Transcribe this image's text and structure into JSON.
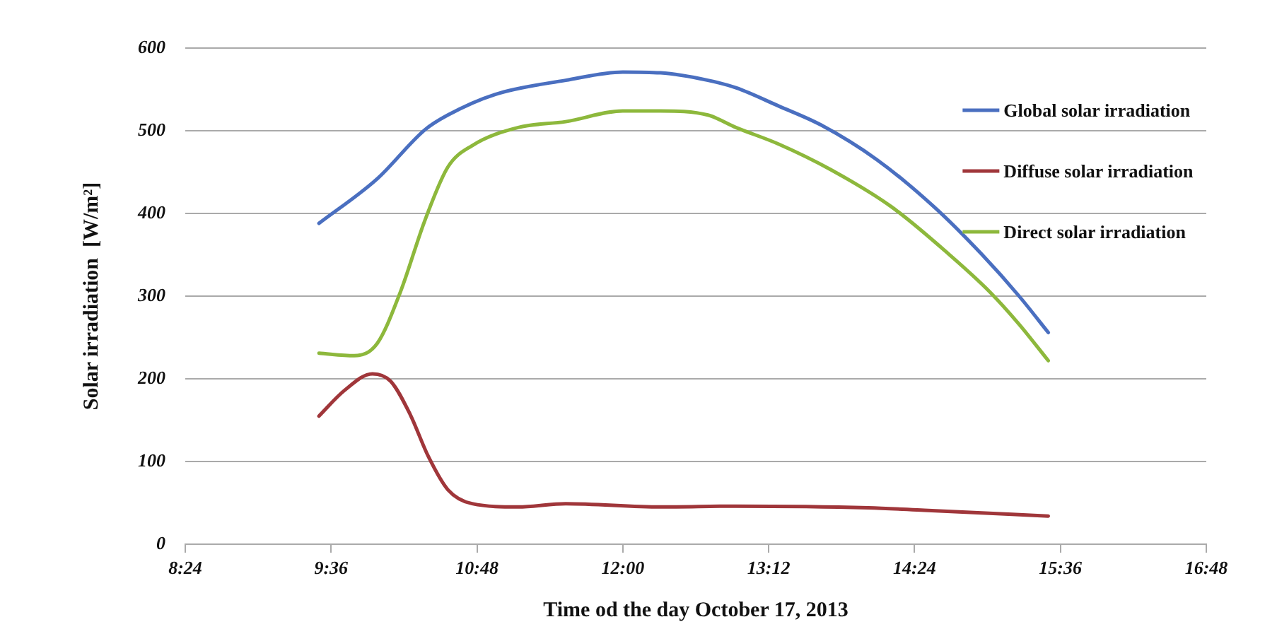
{
  "chart_data": {
    "type": "line",
    "xlabel": "Time od the day October 17, 2013",
    "ylabel": "Solar irradiation  [W/m²]",
    "xlim": [
      8.4,
      16.8
    ],
    "xticks": [
      {
        "value": 8.4,
        "label": "8:24"
      },
      {
        "value": 9.6,
        "label": "9:36"
      },
      {
        "value": 10.8,
        "label": "10:48"
      },
      {
        "value": 12,
        "label": "12:00"
      },
      {
        "value": 13.2,
        "label": "13:12"
      },
      {
        "value": 14.4,
        "label": "14:24"
      },
      {
        "value": 15.6,
        "label": "15:36"
      },
      {
        "value": 16.8,
        "label": "16:48"
      }
    ],
    "ylim": [
      0,
      600
    ],
    "yticks": [
      0,
      100,
      200,
      300,
      400,
      500,
      600
    ],
    "grid": "y",
    "legend": "top right",
    "marker": "none",
    "line_style": "solid",
    "series": [
      {
        "name": "Global solar irradiation",
        "color": "#4a6fc0",
        "x": [
          9.5,
          9.98,
          10.37,
          10.56,
          10.95,
          11.53,
          12.0,
          12.31,
          12.7,
          12.93,
          13.28,
          13.63,
          14.09,
          14.56,
          14.95,
          15.26,
          15.5
        ],
        "values": [
          388,
          442,
          501,
          519,
          544,
          561,
          571,
          570,
          561,
          552,
          530,
          507,
          465,
          408,
          351,
          300,
          256
        ]
      },
      {
        "name": "Diffuse solar irradiation",
        "color": "#a0363a",
        "x": [
          9.5,
          9.71,
          9.94,
          10.09,
          10.25,
          10.4,
          10.56,
          10.76,
          11.14,
          11.53,
          12.31,
          12.93,
          14.02,
          14.48,
          15.5
        ],
        "values": [
          155,
          186,
          206,
          197,
          157,
          106,
          66,
          49,
          45,
          49,
          45,
          46,
          44,
          41,
          34
        ]
      },
      {
        "name": "Direct solar irradiation",
        "color": "#8db83c",
        "x": [
          9.5,
          9.79,
          9.98,
          10.17,
          10.37,
          10.56,
          10.76,
          11.14,
          11.53,
          12.0,
          12.31,
          12.7,
          12.93,
          13.28,
          13.71,
          14.21,
          14.68,
          15.02,
          15.26,
          15.5
        ],
        "values": [
          231,
          228,
          243,
          305,
          391,
          456,
          482,
          504,
          511,
          524,
          524,
          519,
          504,
          484,
          453,
          408,
          351,
          305,
          266,
          222
        ]
      }
    ]
  }
}
